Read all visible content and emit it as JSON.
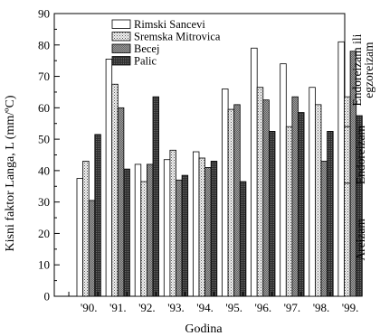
{
  "chart_data": {
    "type": "bar",
    "categories": [
      "'90.",
      "'91.",
      "'92.",
      "'93.",
      "'94.",
      "'95.",
      "'96.",
      "'97.",
      "'98.",
      "'99."
    ],
    "series": [
      {
        "name": "Rimski Sancevi",
        "values": [
          37.5,
          75.5,
          42.0,
          43.5,
          46.0,
          66.0,
          79.0,
          74.0,
          66.5,
          81.0
        ]
      },
      {
        "name": "Sremska Mitrovica",
        "values": [
          43.0,
          67.5,
          36.5,
          46.5,
          44.0,
          59.5,
          66.5,
          54.0,
          61.0,
          63.5
        ]
      },
      {
        "name": "Becej",
        "values": [
          30.5,
          60.0,
          42.0,
          37.0,
          41.0,
          61.0,
          62.5,
          63.5,
          43.0,
          78.0
        ]
      },
      {
        "name": "Palic",
        "values": [
          51.5,
          40.5,
          63.5,
          38.5,
          43.0,
          36.5,
          52.5,
          58.5,
          52.5,
          57.5
        ]
      }
    ],
    "xlabel": "Godina",
    "ylabel": "Kisni faktor Langa, L (mm/ºC)",
    "ylim": [
      0,
      90
    ],
    "yticks": [
      "0",
      "10",
      "20",
      "30",
      "40",
      "50",
      "60",
      "70",
      "80",
      "90"
    ],
    "right_axis": {
      "regions": [
        {
          "label": "Areizam",
          "from": 0,
          "to": 40
        },
        {
          "label": "Endoreizam",
          "from": 40,
          "to": 60
        },
        {
          "label_lines": [
            "Endoreizam ili",
            "egzoreizam"
          ],
          "from": 60,
          "to": 100
        }
      ]
    },
    "legend_position": "top-inside",
    "grid": false,
    "colors": {
      "Rimski Sancevi": "#ffffff",
      "Sremska Mitrovica": "#dcdcdc",
      "Becej": "#8c8c8c",
      "Palic": "#3a3a3a"
    }
  }
}
